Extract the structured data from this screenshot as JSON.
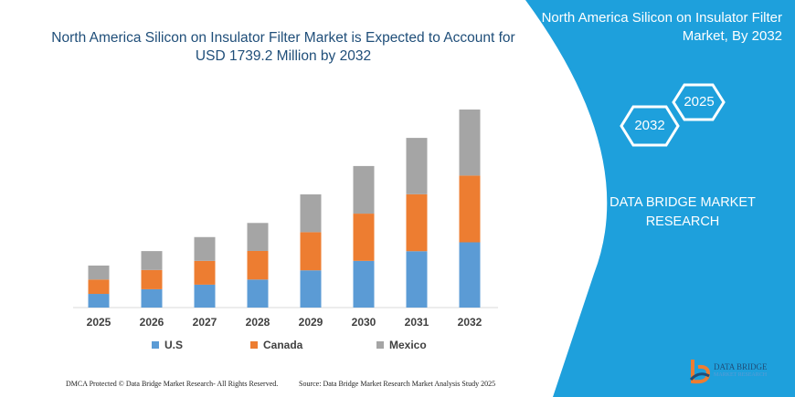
{
  "header": {
    "title": "North America Silicon on Insulator Filter Market is Expected to Account for USD 1739.2 Million by 2032"
  },
  "side_panel": {
    "title": "North America Silicon on Insulator Filter Market, By 2032",
    "hex_labels": [
      "2032",
      "2025"
    ],
    "brand": "DATA BRIDGE MARKET RESEARCH",
    "color": "#1ea0dc"
  },
  "chart_data": {
    "type": "bar",
    "stacked": true,
    "title": "",
    "xlabel": "",
    "ylabel": "",
    "categories": [
      "2025",
      "2026",
      "2027",
      "2028",
      "2029",
      "2030",
      "2031",
      "2032"
    ],
    "ylim": [
      0,
      1739.2
    ],
    "grid": false,
    "legend": "bottom",
    "series": [
      {
        "name": "U.S",
        "color": "#5b9bd5",
        "values": [
          120,
          161,
          201,
          246,
          327,
          410,
          495,
          573
        ]
      },
      {
        "name": "Canada",
        "color": "#ed7d31",
        "values": [
          126,
          169,
          209,
          251,
          335,
          415,
          500,
          586
        ]
      },
      {
        "name": "Mexico",
        "color": "#a5a5a5",
        "values": [
          123,
          166,
          209,
          246,
          332,
          418,
          495,
          580
        ]
      }
    ]
  },
  "footer": {
    "copyright": "DMCA Protected © Data Bridge Market Research- All Rights Reserved.",
    "source": "Source: Data Bridge Market Research Market Analysis Study 2025",
    "logo_text": "DATA BRIDGE",
    "logo_sub": "MARKET RESEARCH"
  }
}
